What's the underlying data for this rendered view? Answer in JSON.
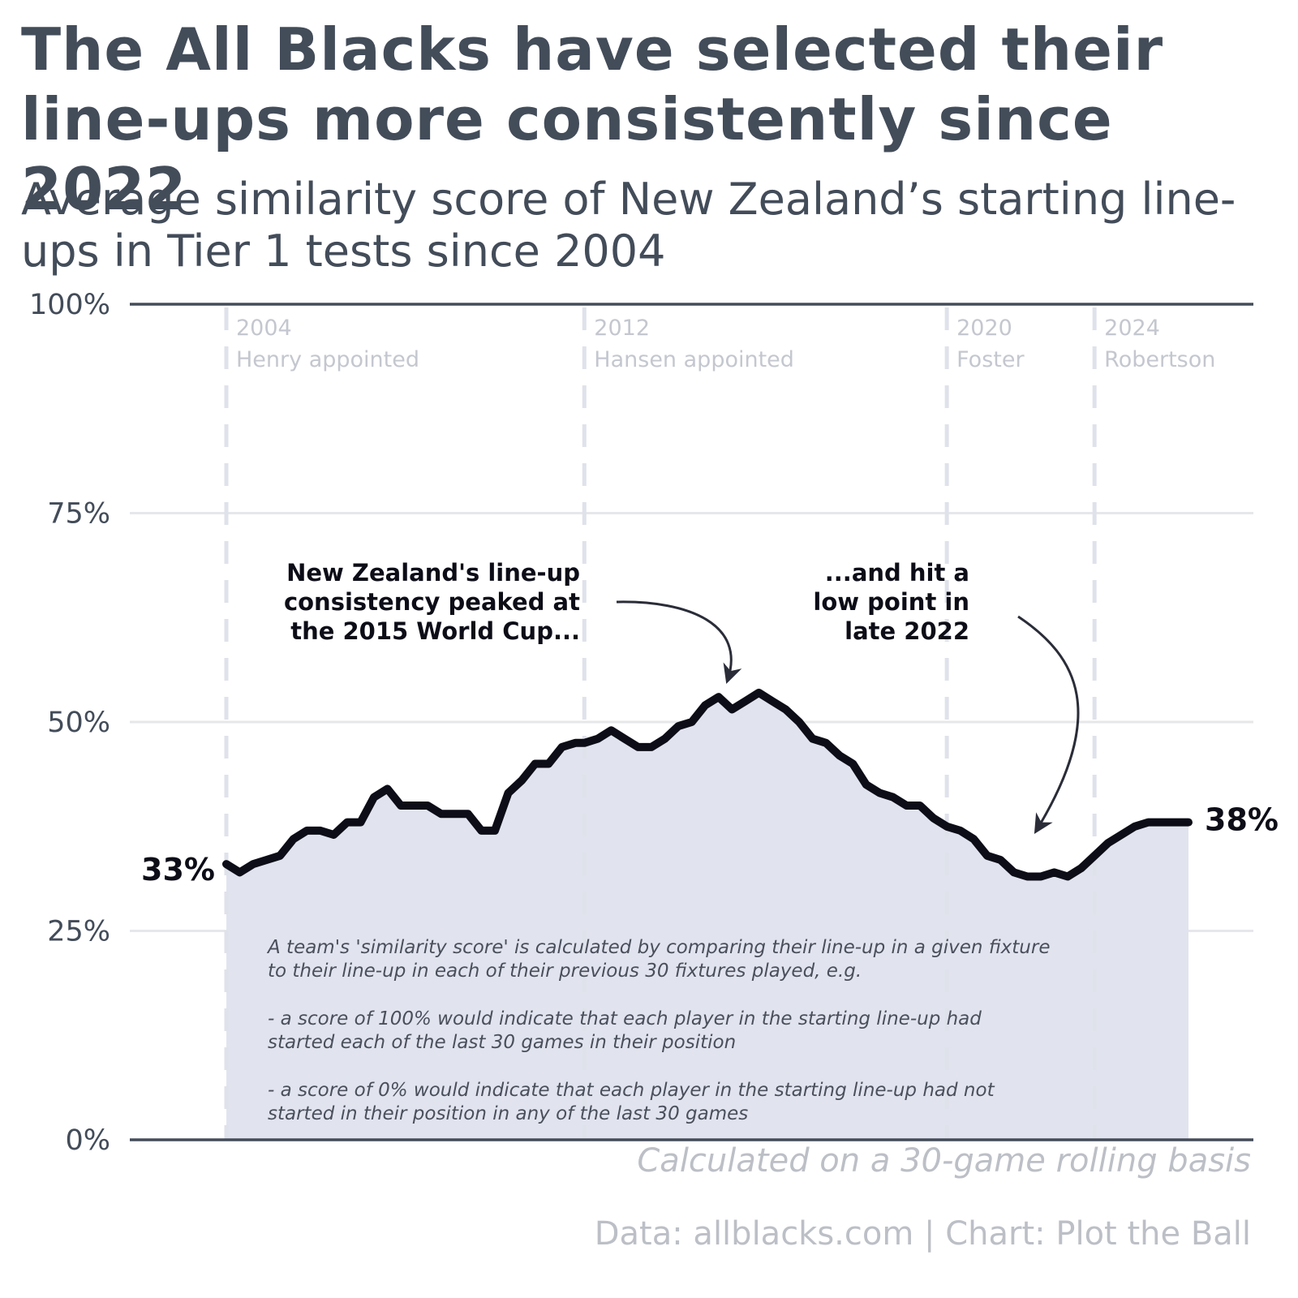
{
  "title": "The All Blacks have selected their line-ups more consistently since 2022",
  "subtitle": "Average similarity score of New Zealand’s starting line-ups in Tier 1 tests since 2004",
  "basis_note": "Calculated on a 30-game rolling basis",
  "source": "Data: allblacks.com | Chart: Plot the Ball",
  "chart_data": {
    "type": "area",
    "title": "The All Blacks have selected their line-ups more consistently since 2022",
    "subtitle": "Average similarity score of New Zealand’s starting line-ups in Tier 1 tests since 2004",
    "xlabel": "",
    "ylabel": "",
    "xlim": [
      2004.0,
      2025.5
    ],
    "ylim": [
      0,
      100
    ],
    "y_ticks": [
      "0%",
      "25%",
      "50%",
      "75%",
      "100%"
    ],
    "y_tick_values": [
      0,
      25,
      50,
      75,
      100
    ],
    "grid": true,
    "series": [
      {
        "x": [
          2004.0,
          2004.3,
          2004.6,
          2004.9,
          2005.2,
          2005.5,
          2005.8,
          2006.1,
          2006.4,
          2006.7,
          2007.0,
          2007.3,
          2007.6,
          2007.9,
          2008.2,
          2008.5,
          2008.8,
          2009.1,
          2009.4,
          2009.7,
          2010.0,
          2010.3,
          2010.6,
          2010.9,
          2011.2,
          2011.5,
          2011.8,
          2012.0,
          2012.3,
          2012.6,
          2012.9,
          2013.2,
          2013.5,
          2013.8,
          2014.1,
          2014.4,
          2014.7,
          2015.0,
          2015.3,
          2015.6,
          2015.9,
          2016.2,
          2016.5,
          2016.8,
          2017.1,
          2017.4,
          2017.7,
          2018.0,
          2018.3,
          2018.6,
          2018.9,
          2019.2,
          2019.5,
          2019.8,
          2020.1,
          2020.4,
          2020.7,
          2021.0,
          2021.3,
          2021.6,
          2021.9,
          2022.2,
          2022.5,
          2022.8,
          2023.1,
          2023.4,
          2023.7,
          2024.0,
          2024.3,
          2024.6,
          2024.9,
          2025.2,
          2025.5
        ],
        "values": [
          33,
          32,
          33,
          33.5,
          34,
          36,
          37,
          37,
          36.5,
          38,
          38,
          41,
          42,
          40,
          40,
          40,
          39,
          39,
          39,
          37,
          37,
          41.5,
          43,
          45,
          45,
          47,
          47.5,
          47.5,
          48,
          49,
          48,
          47,
          47,
          48,
          49.5,
          50,
          52,
          53,
          51.5,
          52.5,
          53.5,
          52.5,
          51.5,
          50,
          48,
          47.5,
          46,
          45,
          42.5,
          41.5,
          41,
          40,
          40,
          38.5,
          37.5,
          37,
          36,
          34,
          33.5,
          32,
          31.5,
          31.5,
          32,
          31.5,
          32.5,
          34,
          35.5,
          36.5,
          37.5,
          38,
          38,
          38,
          38
        ]
      }
    ],
    "start_label": "33%",
    "end_label": "38%",
    "eras": [
      {
        "year": "2004",
        "name": "Henry appointed",
        "x": 2004.0
      },
      {
        "year": "2012",
        "name": "Hansen appointed",
        "x": 2012.0
      },
      {
        "year": "2020",
        "name": "Foster",
        "x": 2020.1
      },
      {
        "year": "2024",
        "name": "Robertson",
        "x": 2023.4
      }
    ],
    "annotations": [
      {
        "lines": [
          "New Zealand's line-up",
          "consistency peaked at",
          "the 2015 World Cup..."
        ],
        "target_x": 2015.2,
        "target_y": 55
      },
      {
        "lines": [
          "...and hit a",
          "low point in",
          "late 2022"
        ],
        "target_x": 2022.1,
        "target_y": 37
      }
    ],
    "note_lines": [
      "A team's 'similarity score' is calculated by comparing their line-up in a given fixture",
      "to their line-up in each of their previous 30 fixtures played, e.g.",
      "",
      "- a score of 100% would indicate that each player in the starting line-up had",
      "started each of the last 30 games in their position",
      "",
      "- a score of 0% would indicate that each player in the starting line-up had not",
      "started in their position in any of the last 30 games"
    ],
    "colors": {
      "line": "#0d0d18",
      "area": "#e1e4ee",
      "grid": "#e6e7ea",
      "axis": "#434c59",
      "era_line": "#dfe2ea",
      "muted_text": "#c4c7cf"
    }
  }
}
